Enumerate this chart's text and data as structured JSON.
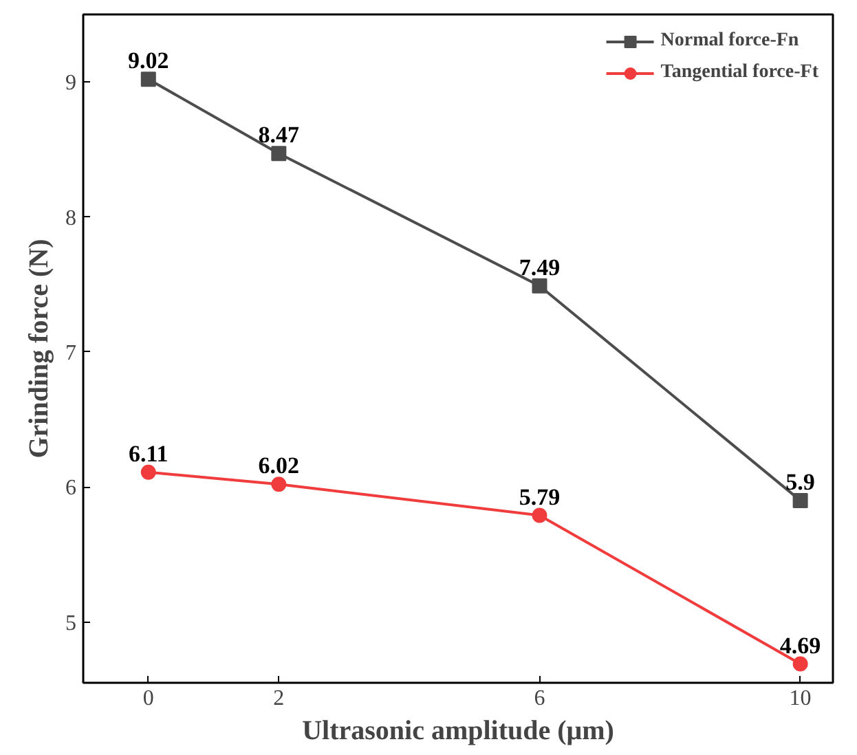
{
  "chart_data": {
    "type": "line",
    "xlabel": "Ultrasonic amplitude (μm)",
    "ylabel": "Grinding force (N)",
    "x": [
      0,
      2,
      6,
      10
    ],
    "series": [
      {
        "name": "Normal force-Fn",
        "color": "#4d4d4d",
        "values": [
          9.02,
          8.47,
          7.49,
          5.9
        ],
        "marker": "square"
      },
      {
        "name": "Tangential force-Ft",
        "color": "#f03c3c",
        "values": [
          6.11,
          6.02,
          5.79,
          4.69
        ],
        "marker": "circle"
      }
    ],
    "xlim": [
      -1,
      10.5
    ],
    "ylim": [
      4.55,
      9.5
    ],
    "xticks": [
      0,
      2,
      6,
      10
    ],
    "yticks": [
      5,
      6,
      7,
      8,
      9
    ],
    "data_labels": true,
    "grid": false,
    "legend": "top right",
    "line_style": "solid"
  }
}
